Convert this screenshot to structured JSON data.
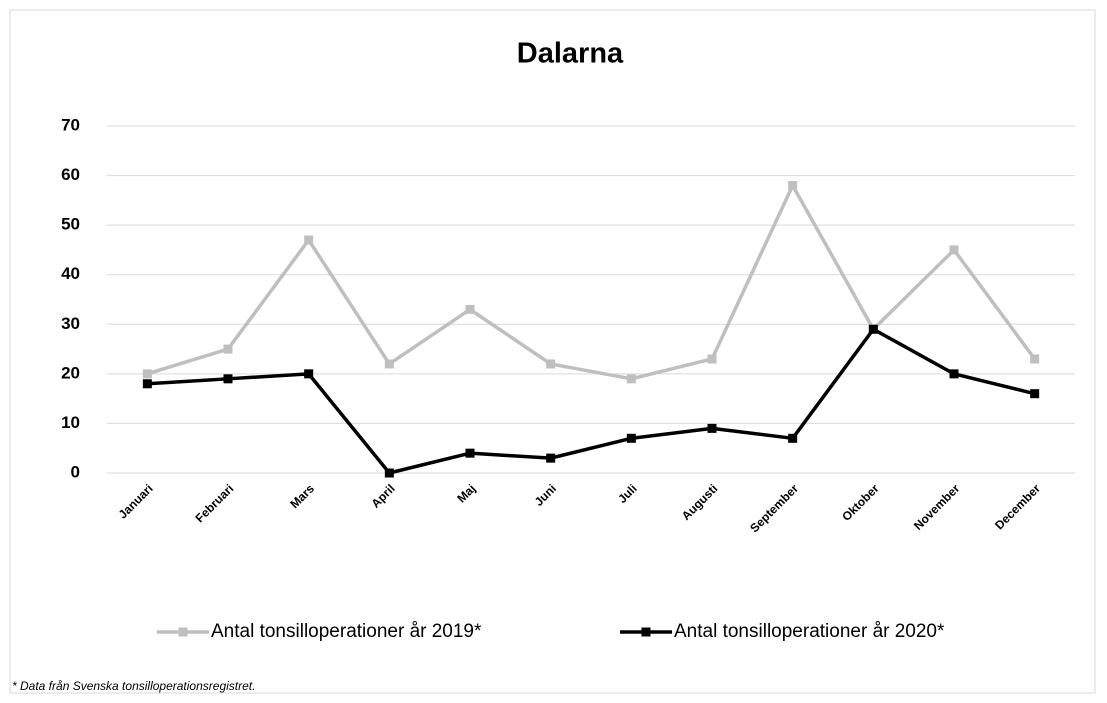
{
  "chart_data": {
    "type": "line",
    "title": "Dalarna",
    "categories": [
      "Januari",
      "Februari",
      "Mars",
      "April",
      "Maj",
      "Juni",
      "Juli",
      "Augusti",
      "September",
      "Oktober",
      "November",
      "December"
    ],
    "series": [
      {
        "name": "Antal tonsilloperationer år 2019*",
        "color": "#bfbfbf",
        "values": [
          20,
          25,
          47,
          22,
          33,
          22,
          19,
          23,
          58,
          29,
          45,
          23
        ]
      },
      {
        "name": "Antal tonsilloperationer år 2020*",
        "color": "#000000",
        "values": [
          18,
          19,
          20,
          0,
          4,
          3,
          7,
          9,
          7,
          29,
          20,
          16
        ]
      }
    ],
    "ylim": [
      0,
      70
    ],
    "yticks": [
      0,
      10,
      20,
      30,
      40,
      50,
      60,
      70
    ],
    "grid": true,
    "legend": "bottom",
    "footnote": "* Data från Svenska tonsilloperationsregistret."
  }
}
